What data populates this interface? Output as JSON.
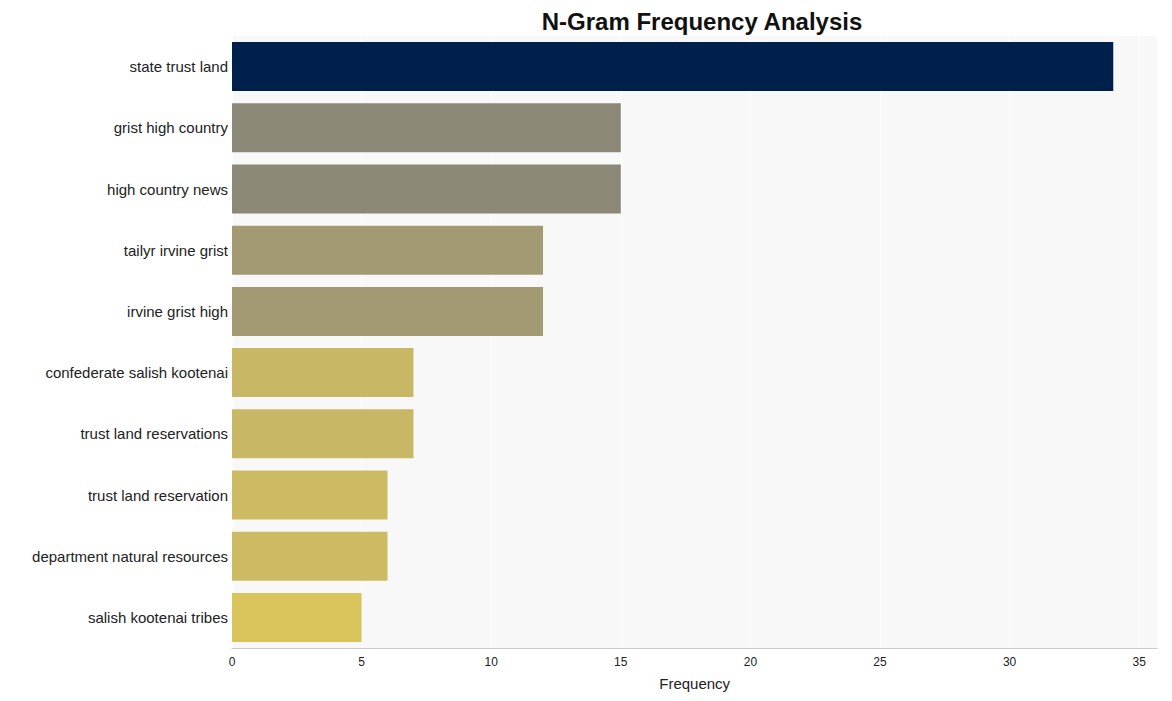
{
  "chart_data": {
    "type": "bar",
    "orientation": "horizontal",
    "title": "N-Gram Frequency Analysis",
    "x_label": "Frequency",
    "categories": [
      "state trust land",
      "grist high country",
      "high country news",
      "tailyr irvine grist",
      "irvine grist high",
      "confederate salish kootenai",
      "trust land reservations",
      "trust land reservation",
      "department natural resources",
      "salish kootenai tribes"
    ],
    "values": [
      34,
      15,
      15,
      12,
      12,
      7,
      7,
      6,
      6,
      5
    ],
    "colors": [
      "#00204c",
      "#8b8878",
      "#8b8878",
      "#a39a74",
      "#a39a74",
      "#c8b866",
      "#c8b866",
      "#cdbb63",
      "#cdbb63",
      "#d8c45a"
    ],
    "xlim": [
      0,
      35.7
    ],
    "xticks": [
      0,
      5,
      10,
      15,
      20,
      25,
      30,
      35
    ],
    "grid": true
  }
}
